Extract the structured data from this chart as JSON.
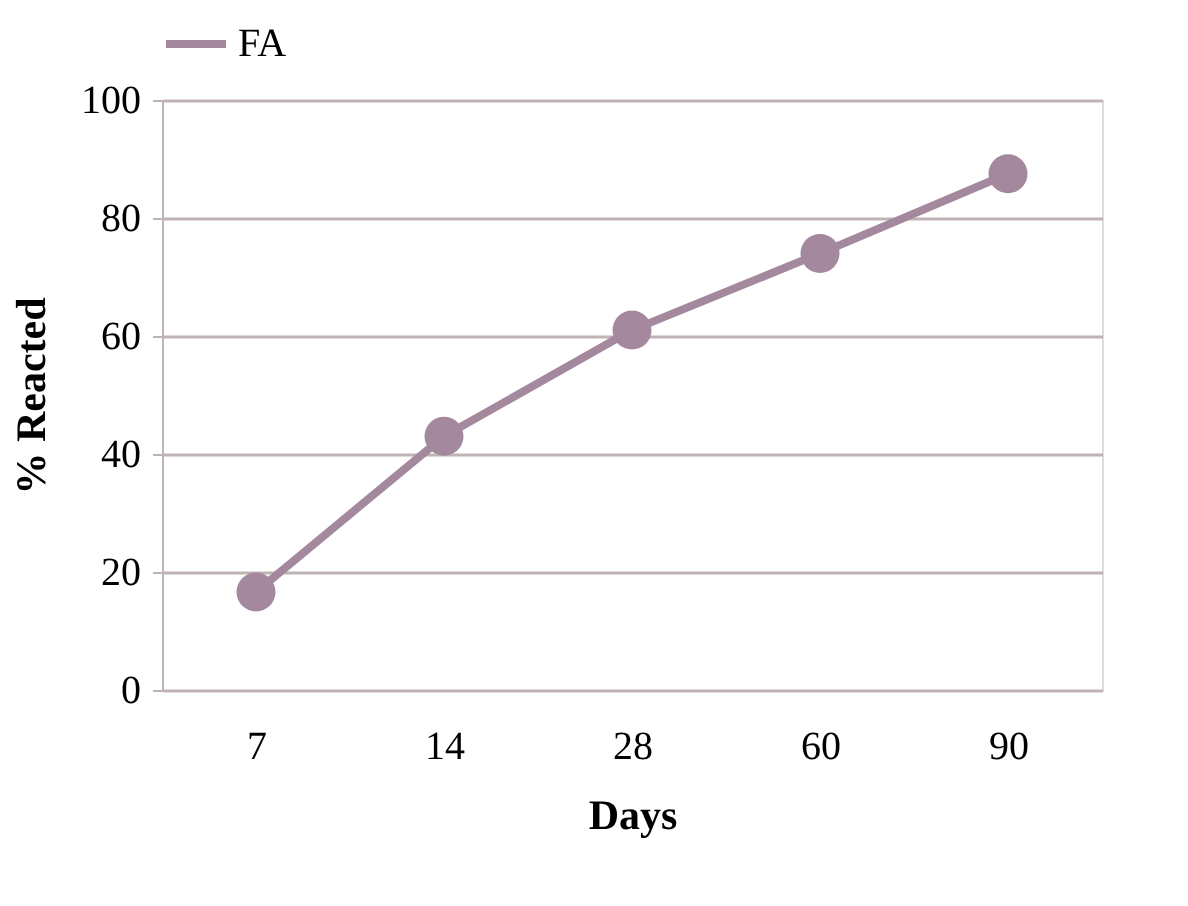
{
  "chart_data": {
    "type": "line",
    "xlabel": "Days",
    "ylabel": "% Reacted",
    "categories": [
      "7",
      "14",
      "28",
      "60",
      "90"
    ],
    "series": [
      {
        "name": "FA",
        "color": "#a4899e",
        "values": [
          16.6,
          43,
          61,
          74,
          87.5
        ]
      }
    ],
    "ylim": [
      0,
      100
    ],
    "yticks": [
      0,
      20,
      40,
      60,
      80,
      100
    ],
    "grid": "y",
    "legend": "top",
    "marker": "circle",
    "line_style": "solid"
  }
}
